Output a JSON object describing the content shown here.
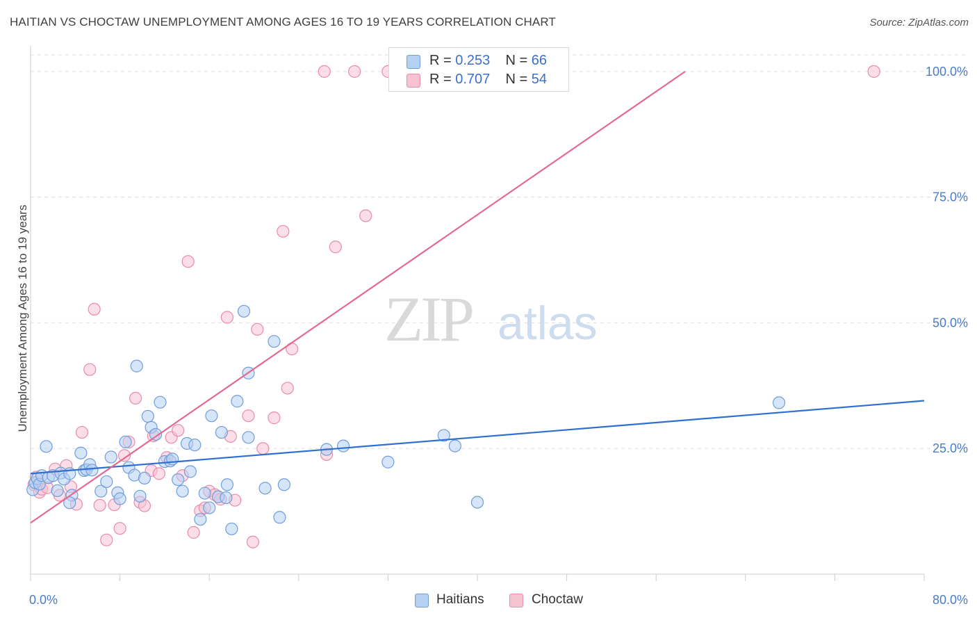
{
  "title": "HAITIAN VS CHOCTAW UNEMPLOYMENT AMONG AGES 16 TO 19 YEARS CORRELATION CHART",
  "source": "Source: ZipAtlas.com",
  "watermark": {
    "zip": "ZIP",
    "atlas": "atlas"
  },
  "legend": {
    "haitians": {
      "r_label": "R = ",
      "r_value": "0.253",
      "n_label": "N = ",
      "n_value": "66"
    },
    "choctaw": {
      "r_label": "R = ",
      "r_value": "0.707",
      "n_label": "N = ",
      "n_value": "54"
    }
  },
  "bottom_legend": {
    "haitians": "Haitians",
    "choctaw": "Choctaw"
  },
  "colors": {
    "haitians_fill": "#b6d0f2",
    "haitians_stroke": "#6f9ddc",
    "haitians_line": "#2f6fce",
    "choctaw_fill": "#f7c3d3",
    "choctaw_stroke": "#e88ca9",
    "choctaw_line": "#e4698f",
    "grid": "#dddddd",
    "tick_text": "#4a7cc7"
  },
  "chart_data": {
    "type": "scatter",
    "xlabel": "",
    "ylabel": "Unemployment Among Ages 16 to 19 years",
    "xlim": [
      0,
      80
    ],
    "ylim": [
      0,
      100
    ],
    "x_tick_labels": [
      "0.0%",
      "80.0%"
    ],
    "y_ticks": [
      25,
      50,
      75,
      100
    ],
    "y_tick_labels": [
      "25.0%",
      "50.0%",
      "75.0%",
      "100.0%"
    ],
    "grid": true,
    "series": [
      {
        "name": "Haitians",
        "trend": {
          "x0": 0,
          "y0": 20.0,
          "x1": 80,
          "y1": 34.5
        },
        "points": [
          [
            0.2,
            16.8
          ],
          [
            0.4,
            18.2
          ],
          [
            0.6,
            19.0
          ],
          [
            0.8,
            17.9
          ],
          [
            1.0,
            19.6
          ],
          [
            1.4,
            25.4
          ],
          [
            1.6,
            19.2
          ],
          [
            2.0,
            19.6
          ],
          [
            2.4,
            16.6
          ],
          [
            2.7,
            20.1
          ],
          [
            3.0,
            18.9
          ],
          [
            3.5,
            20.0
          ],
          [
            3.7,
            15.7
          ],
          [
            3.5,
            14.2
          ],
          [
            4.5,
            24.1
          ],
          [
            4.8,
            20.6
          ],
          [
            5.0,
            20.8
          ],
          [
            5.3,
            21.8
          ],
          [
            5.5,
            20.7
          ],
          [
            6.3,
            16.5
          ],
          [
            6.8,
            18.4
          ],
          [
            7.2,
            23.3
          ],
          [
            7.8,
            16.2
          ],
          [
            8.0,
            15.0
          ],
          [
            8.5,
            26.3
          ],
          [
            8.8,
            21.2
          ],
          [
            9.3,
            19.7
          ],
          [
            9.5,
            41.4
          ],
          [
            9.8,
            15.5
          ],
          [
            10.2,
            19.1
          ],
          [
            10.5,
            31.4
          ],
          [
            10.8,
            29.2
          ],
          [
            11.2,
            27.8
          ],
          [
            11.6,
            34.2
          ],
          [
            12.0,
            22.4
          ],
          [
            12.5,
            22.5
          ],
          [
            12.7,
            22.9
          ],
          [
            13.2,
            18.8
          ],
          [
            13.6,
            16.5
          ],
          [
            14.0,
            26.0
          ],
          [
            14.3,
            20.4
          ],
          [
            14.7,
            25.7
          ],
          [
            15.2,
            10.9
          ],
          [
            15.6,
            16.1
          ],
          [
            16.0,
            13.2
          ],
          [
            16.2,
            31.5
          ],
          [
            16.8,
            15.4
          ],
          [
            17.1,
            28.2
          ],
          [
            17.5,
            15.2
          ],
          [
            17.6,
            17.8
          ],
          [
            18.0,
            9.0
          ],
          [
            18.5,
            34.4
          ],
          [
            19.1,
            52.3
          ],
          [
            19.5,
            40.0
          ],
          [
            19.5,
            27.2
          ],
          [
            21.0,
            17.1
          ],
          [
            21.8,
            46.3
          ],
          [
            22.3,
            11.3
          ],
          [
            22.7,
            17.8
          ],
          [
            26.5,
            24.8
          ],
          [
            28.0,
            25.5
          ],
          [
            32.0,
            22.3
          ],
          [
            37.0,
            27.6
          ],
          [
            38.0,
            25.5
          ],
          [
            40.0,
            14.3
          ],
          [
            67.0,
            34.1
          ]
        ]
      },
      {
        "name": "Choctaw",
        "trend": {
          "x0": 0,
          "y0": 10.2,
          "x1": 58.6,
          "y1": 100.0
        },
        "points": [
          [
            0.3,
            17.8
          ],
          [
            0.5,
            19.3
          ],
          [
            0.8,
            16.3
          ],
          [
            1.0,
            16.9
          ],
          [
            1.5,
            17.2
          ],
          [
            2.2,
            20.9
          ],
          [
            2.6,
            15.7
          ],
          [
            3.2,
            21.6
          ],
          [
            3.6,
            17.4
          ],
          [
            4.1,
            13.9
          ],
          [
            4.6,
            28.2
          ],
          [
            5.3,
            40.7
          ],
          [
            5.7,
            52.7
          ],
          [
            6.2,
            13.7
          ],
          [
            6.8,
            6.8
          ],
          [
            7.5,
            13.8
          ],
          [
            8.0,
            9.1
          ],
          [
            8.4,
            23.6
          ],
          [
            8.8,
            26.3
          ],
          [
            9.4,
            35.0
          ],
          [
            9.8,
            14.3
          ],
          [
            10.2,
            13.6
          ],
          [
            10.8,
            20.6
          ],
          [
            11.0,
            27.5
          ],
          [
            11.5,
            20.0
          ],
          [
            12.2,
            23.2
          ],
          [
            12.6,
            27.2
          ],
          [
            13.2,
            28.6
          ],
          [
            13.6,
            19.6
          ],
          [
            14.1,
            62.2
          ],
          [
            14.6,
            8.3
          ],
          [
            15.2,
            12.6
          ],
          [
            15.6,
            13.2
          ],
          [
            16.0,
            16.5
          ],
          [
            16.5,
            15.8
          ],
          [
            17.0,
            14.9
          ],
          [
            17.6,
            51.1
          ],
          [
            17.9,
            27.4
          ],
          [
            18.3,
            14.7
          ],
          [
            19.5,
            31.5
          ],
          [
            19.9,
            6.4
          ],
          [
            20.3,
            48.7
          ],
          [
            20.8,
            25.0
          ],
          [
            21.8,
            31.1
          ],
          [
            22.6,
            68.2
          ],
          [
            23.0,
            37.0
          ],
          [
            23.4,
            44.8
          ],
          [
            26.5,
            23.8
          ],
          [
            27.3,
            65.1
          ],
          [
            30.0,
            71.3
          ],
          [
            26.3,
            100.0
          ],
          [
            29.0,
            100.0
          ],
          [
            32.0,
            100.0
          ],
          [
            75.5,
            100.0
          ]
        ]
      }
    ]
  }
}
